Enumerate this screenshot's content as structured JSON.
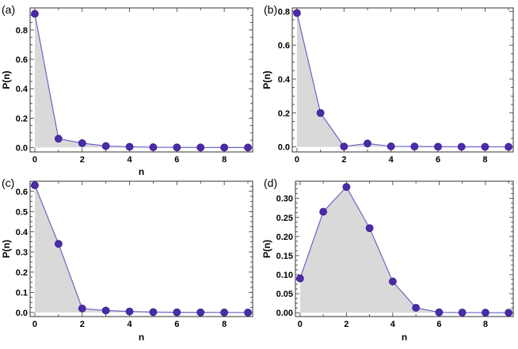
{
  "chart_data": [
    {
      "type": "area",
      "panel_label": "(a)",
      "xlabel": "n",
      "ylabel": "P(n)",
      "x": [
        0,
        1,
        2,
        3,
        4,
        5,
        6,
        7,
        8,
        9
      ],
      "series": [
        {
          "values": [
            0.91,
            0.06,
            0.03,
            0.01,
            0.005,
            0.002,
            0.001,
            0.0005,
            0.0003,
            0.0001
          ]
        }
      ],
      "xlim": [
        -0.2,
        9.2
      ],
      "ylim": [
        -0.03,
        0.95
      ],
      "xticks": [
        0,
        2,
        4,
        6,
        8
      ],
      "yticks": [
        0.0,
        0.2,
        0.4,
        0.6,
        0.8
      ],
      "yticklabels": [
        "0.0",
        "0.2",
        "0.4",
        "0.6",
        "0.8"
      ],
      "fill": "#d9d9d9",
      "line_color": "#6a64c8",
      "marker_color": "#4b2ba8",
      "grid": false
    },
    {
      "type": "area",
      "panel_label": "(b)",
      "xlabel": "",
      "ylabel": "P(n)",
      "x": [
        0,
        1,
        2,
        3,
        4,
        5,
        6,
        7,
        8,
        9
      ],
      "series": [
        {
          "values": [
            0.79,
            0.2,
            0.002,
            0.02,
            0.003,
            0.002,
            0.001,
            0.0005,
            0.0003,
            0.0001
          ]
        }
      ],
      "xlim": [
        -0.2,
        9.2
      ],
      "ylim": [
        -0.03,
        0.82
      ],
      "xticks": [
        0,
        2,
        4,
        6,
        8
      ],
      "yticks": [
        0.0,
        0.2,
        0.4,
        0.6,
        0.8
      ],
      "yticklabels": [
        "0.0",
        "0.2",
        "0.4",
        "0.6",
        "0.8"
      ],
      "fill": "#d9d9d9",
      "line_color": "#6a64c8",
      "marker_color": "#4b2ba8",
      "grid": false
    },
    {
      "type": "area",
      "panel_label": "(c)",
      "xlabel": "n",
      "ylabel": "P(n)",
      "x": [
        0,
        1,
        2,
        3,
        4,
        5,
        6,
        7,
        8,
        9
      ],
      "series": [
        {
          "values": [
            0.63,
            0.34,
            0.02,
            0.01,
            0.005,
            0.002,
            0.001,
            0.0005,
            0.0003,
            0.0001
          ]
        }
      ],
      "xlim": [
        -0.2,
        9.2
      ],
      "ylim": [
        -0.02,
        0.65
      ],
      "xticks": [
        0,
        2,
        4,
        6,
        8
      ],
      "yticks": [
        0.0,
        0.1,
        0.2,
        0.3,
        0.4,
        0.5,
        0.6
      ],
      "yticklabels": [
        "0.0",
        "0.1",
        "0.2",
        "0.3",
        "0.4",
        "0.5",
        "0.6"
      ],
      "fill": "#d9d9d9",
      "line_color": "#6a64c8",
      "marker_color": "#4b2ba8",
      "grid": false
    },
    {
      "type": "area",
      "panel_label": "(d)",
      "xlabel": "n",
      "ylabel": "P(n)",
      "x": [
        0,
        1,
        2,
        3,
        4,
        5,
        6,
        7,
        8,
        9
      ],
      "series": [
        {
          "values": [
            0.09,
            0.265,
            0.33,
            0.222,
            0.082,
            0.013,
            0.001,
            0.0005,
            0.0003,
            0.0001
          ]
        }
      ],
      "xlim": [
        -0.2,
        9.2
      ],
      "ylim": [
        -0.01,
        0.345
      ],
      "xticks": [
        0,
        2,
        4,
        6,
        8
      ],
      "yticks": [
        0.0,
        0.05,
        0.1,
        0.15,
        0.2,
        0.25,
        0.3
      ],
      "yticklabels": [
        "0.00",
        "0.05",
        "0.10",
        "0.15",
        "0.20",
        "0.25",
        "0.30"
      ],
      "fill": "#d9d9d9",
      "line_color": "#6a64c8",
      "marker_color": "#4b2ba8",
      "grid": false
    }
  ]
}
